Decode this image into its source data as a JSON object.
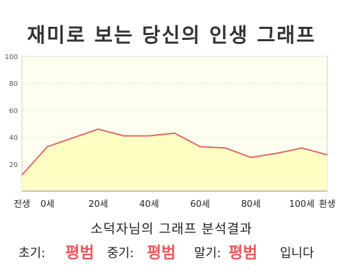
{
  "title": "재미로 보는 당신의 인생 그래프",
  "subtitle": "소덕자님의 그래프 분석결과",
  "result": {
    "early_label": "초기:",
    "early_value": "평범",
    "middle_label": "중기:",
    "middle_value": "평범",
    "late_label": "말기:",
    "late_value": "평범",
    "suffix": "입니다"
  },
  "colors": {
    "fill": "#ffffc4",
    "line": "#e06666",
    "plot_bg": "#fffff0",
    "accent": "#e85a5a"
  },
  "chart_data": {
    "type": "area",
    "title": "재미로 보는 당신의 인생 그래프",
    "x": [
      -10,
      0,
      20,
      30,
      40,
      50,
      60,
      70,
      80,
      90,
      100,
      110
    ],
    "tick_values": [
      -10,
      0,
      20,
      40,
      60,
      80,
      100,
      110
    ],
    "tick_labels": [
      "전생",
      "0세",
      "20세",
      "40세",
      "60세",
      "80세",
      "100세",
      "환생"
    ],
    "yticks": [
      20,
      40,
      60,
      80,
      100
    ],
    "ylim": [
      0,
      100
    ],
    "xlim": [
      -10,
      110
    ],
    "grid": true,
    "series": [
      {
        "values": [
          12,
          33,
          46,
          41,
          41,
          43,
          33,
          32,
          25,
          28,
          32,
          27
        ]
      }
    ]
  }
}
